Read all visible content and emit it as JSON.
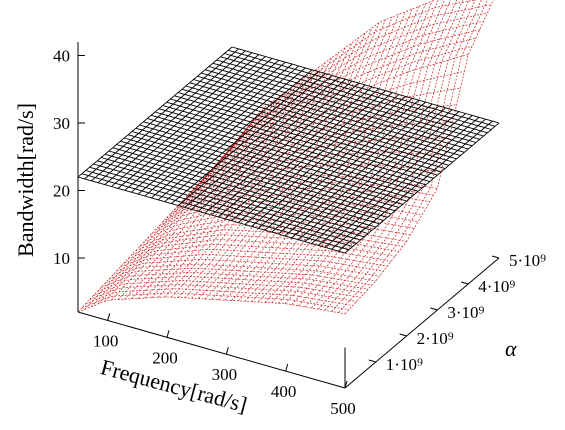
{
  "chart_data": {
    "type": "surface3d",
    "zlabel": "Bandwidth[rad/s]",
    "xlabel": "Frequency[rad/s]",
    "ylabel": "α",
    "x_range": [
      50,
      500
    ],
    "y_range": [
      0,
      5000000000
    ],
    "z_range": [
      2,
      42
    ],
    "x_ticks": [
      {
        "value": 100,
        "label": "100"
      },
      {
        "value": 200,
        "label": "200"
      },
      {
        "value": 300,
        "label": "300"
      },
      {
        "value": 400,
        "label": "400"
      },
      {
        "value": 500,
        "label": "500"
      }
    ],
    "y_ticks": [
      {
        "value": 1000000000,
        "label": "1·10⁹"
      },
      {
        "value": 2000000000,
        "label": "2·10⁹"
      },
      {
        "value": 3000000000,
        "label": "3·10⁹"
      },
      {
        "value": 4000000000,
        "label": "4·10⁹"
      },
      {
        "value": 5000000000,
        "label": "5·10⁹"
      }
    ],
    "z_ticks": [
      {
        "value": 10,
        "label": "10"
      },
      {
        "value": 20,
        "label": "20"
      },
      {
        "value": 30,
        "label": "30"
      },
      {
        "value": 40,
        "label": "40"
      }
    ],
    "series": [
      {
        "kind": "plane",
        "color": "#000000",
        "z_value": 22,
        "grid": [
          40,
          40
        ]
      },
      {
        "kind": "surface",
        "color": "#cc2020",
        "grid": [
          40,
          40
        ],
        "x": [
          50,
          100,
          200,
          300,
          400,
          500
        ],
        "y": [
          0,
          1000000000,
          2000000000,
          3000000000,
          4000000000,
          5000000000
        ],
        "z": [
          [
            2,
            5,
            8,
            10,
            12,
            13
          ],
          [
            3,
            6,
            9,
            11,
            13,
            14
          ],
          [
            4,
            7,
            11,
            13,
            15,
            16
          ],
          [
            5,
            9,
            14,
            17,
            19,
            20
          ],
          [
            6,
            12,
            19,
            25,
            31,
            36
          ],
          [
            7,
            14,
            23,
            32,
            38,
            42
          ]
        ]
      }
    ]
  }
}
